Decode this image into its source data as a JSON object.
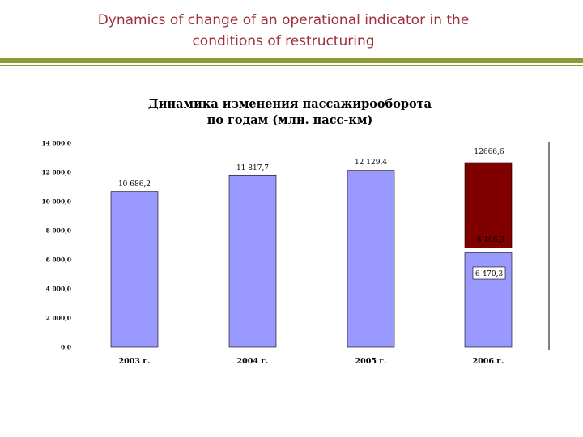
{
  "slide": {
    "title_line1": "Dynamics of change of an operational indicator in the",
    "title_line2": "conditions of restructuring"
  },
  "chart_data": {
    "type": "bar",
    "title": "Динамика изменения пассажирооборота",
    "subtitle": "по годам (млн. пасс-км)",
    "categories": [
      "2003 г.",
      "2004 г.",
      "2005 г.",
      "2006 г."
    ],
    "series": [
      {
        "values": [
          10686.2,
          11817.7,
          12129.4,
          6470.3
        ],
        "labels": [
          "10 686,2",
          "11 817,7",
          "12 129,4",
          "6 470,3"
        ],
        "color": "#9999ff"
      },
      {
        "values": [
          null,
          null,
          null,
          6196.3
        ],
        "labels": [
          "",
          "",
          "",
          "6 196,3"
        ],
        "color": "#800000"
      }
    ],
    "stack_total_2006": {
      "value": 12666.6,
      "label": "12666,6"
    },
    "yticks": [
      "0,0",
      "2 000,0",
      "4 000,0",
      "6 000,0",
      "8 000,0",
      "10 000,0",
      "12 000,0",
      "14 000,0"
    ],
    "ylim": [
      0,
      14000
    ],
    "grid": false,
    "legend": "none"
  }
}
